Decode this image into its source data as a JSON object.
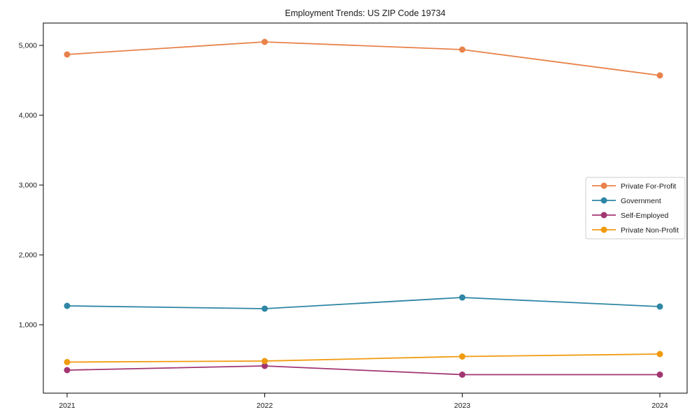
{
  "page": {
    "background": "#ffffff"
  },
  "chart_data": {
    "type": "line",
    "title": "Employment Trends: US ZIP Code 19734",
    "categories": [
      "2021",
      "2022",
      "2023",
      "2024"
    ],
    "series": [
      {
        "name": "Private For-Profit",
        "color": "#e8824a",
        "values": [
          4870,
          5050,
          4940,
          4570
        ]
      },
      {
        "name": "Government",
        "color": "#2e86a5",
        "values": [
          1270,
          1230,
          1390,
          1260
        ]
      },
      {
        "name": "Self-Employed",
        "color": "#a23572",
        "values": [
          350,
          410,
          285,
          285
        ]
      },
      {
        "name": "Private Non-Profit",
        "color": "#f09b0f",
        "values": [
          465,
          480,
          545,
          580
        ]
      }
    ],
    "xlabel": "",
    "ylabel": "",
    "y_ticks": [
      5000,
      4000,
      3000,
      2000,
      1000
    ],
    "y_tick_labels": [
      "5,000",
      "4,000",
      "3,000",
      "2,000",
      "1,000"
    ],
    "ylim": [
      20,
      5320
    ],
    "grid": false,
    "legend_position": "center right",
    "axis_color": "#000000",
    "text_color": "#1a1a1a",
    "legend_border_color": "#cccccc",
    "legend_background": "#ffffff"
  }
}
